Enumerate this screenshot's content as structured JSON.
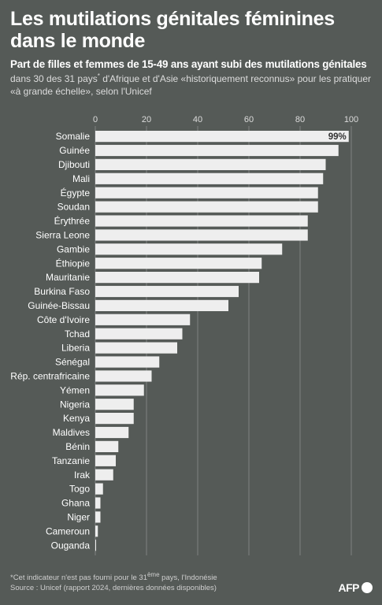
{
  "title": "Les mutilations génitales féminines dans le monde",
  "subtitle": "Part de filles et femmes de 15-49 ans ayant subi des mutilations génitales",
  "description_parts": {
    "before": "dans 30 des 31 pays",
    "sup": "*",
    "after": " d'Afrique et d'Asie «historiquement reconnus» pour les pratiquer «à grande échelle», selon l'Unicef"
  },
  "footnote_parts": {
    "before": "*Cet indicateur n'est pas fourni pour le 31",
    "sup": "ème",
    "after": " pays, l'Indonésie"
  },
  "source": "Source : Unicef (rapport 2024, dernières données disponibles)",
  "logo": {
    "text": "AFP",
    "icon": "afp-logo-circle"
  },
  "colors": {
    "background": "#555a57",
    "bar": "#eeeeee",
    "label": "#ffffff",
    "grid": "#8a8e8b",
    "axis_text": "#dcdcdc"
  },
  "chart_data": {
    "type": "bar",
    "orientation": "horizontal",
    "xlim": [
      0,
      100
    ],
    "ticks": [
      "0",
      "20",
      "40",
      "60",
      "80",
      "100"
    ],
    "grid": true,
    "value_label": {
      "index": 0,
      "text": "99%"
    },
    "categories": [
      "Somalie",
      "Guinée",
      "Djibouti",
      "Mali",
      "Égypte",
      "Soudan",
      "Érythrée",
      "Sierra Leone",
      "Gambie",
      "Éthiopie",
      "Mauritanie",
      "Burkina Faso",
      "Guinée-Bissau",
      "Côte d'Ivoire",
      "Tchad",
      "Liberia",
      "Sénégal",
      "Rép. centrafricaine",
      "Yémen",
      "Nigeria",
      "Kenya",
      "Maldives",
      "Bénin",
      "Tanzanie",
      "Irak",
      "Togo",
      "Ghana",
      "Niger",
      "Cameroun",
      "Ouganda"
    ],
    "values": [
      99,
      95,
      90,
      89,
      87,
      87,
      83,
      83,
      73,
      65,
      64,
      56,
      52,
      37,
      34,
      32,
      25,
      22,
      19,
      15,
      15,
      13,
      9,
      8,
      7,
      3,
      2,
      2,
      1,
      0.3
    ]
  }
}
